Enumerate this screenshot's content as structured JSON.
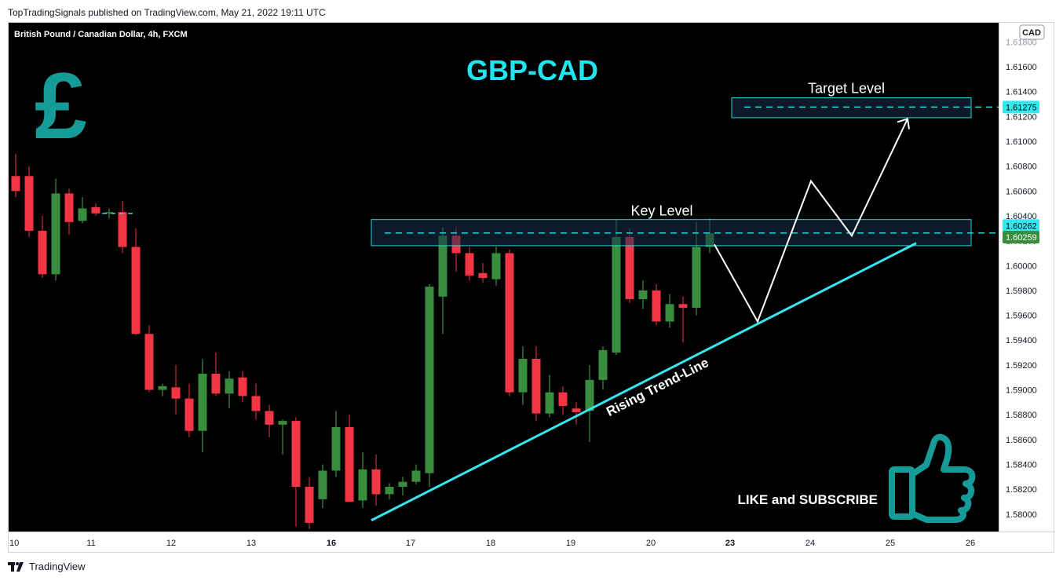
{
  "header": {
    "published_by": "TopTradingSignals published on TradingView.com, May 21, 2022 19:11 UTC",
    "symbol_title": "British Pound / Canadian Dollar, 4h, FXCM"
  },
  "footer": {
    "brand": "TradingView"
  },
  "chart_data": {
    "type": "candlestick",
    "title": "GBP-CAD",
    "currency": "CAD",
    "ylim": [
      1.5786,
      1.6196
    ],
    "y_ticks": [
      1.616,
      1.614,
      1.612,
      1.61,
      1.608,
      1.606,
      1.604,
      1.602,
      1.6,
      1.598,
      1.596,
      1.594,
      1.592,
      1.59,
      1.588,
      1.586,
      1.584,
      1.582,
      1.58
    ],
    "y_tick_labels": [
      "1.61600",
      "1.61400",
      "1.61200",
      "1.61000",
      "1.60800",
      "1.60600",
      "1.60400",
      "1.60200",
      "1.60000",
      "1.59800",
      "1.59600",
      "1.59400",
      "1.59200",
      "1.59000",
      "1.58800",
      "1.58600",
      "1.58400",
      "1.58200",
      "1.58000"
    ],
    "top_partial_tick": "1.61800",
    "x_labels": [
      "10",
      "11",
      "12",
      "13",
      "16",
      "17",
      "18",
      "19",
      "20",
      "23",
      "24",
      "25",
      "26"
    ],
    "x_labels_bold": [
      "16",
      "23"
    ],
    "candles": [
      {
        "o": 1.6072,
        "h": 1.609,
        "l": 1.6055,
        "c": 1.606
      },
      {
        "o": 1.6072,
        "h": 1.608,
        "l": 1.6023,
        "c": 1.6028
      },
      {
        "o": 1.6028,
        "h": 1.604,
        "l": 1.599,
        "c": 1.5993
      },
      {
        "o": 1.5993,
        "h": 1.607,
        "l": 1.5988,
        "c": 1.6058
      },
      {
        "o": 1.6058,
        "h": 1.6062,
        "l": 1.6025,
        "c": 1.6035
      },
      {
        "o": 1.6036,
        "h": 1.6055,
        "l": 1.6034,
        "c": 1.6046
      },
      {
        "o": 1.6047,
        "h": 1.605,
        "l": 1.604,
        "c": 1.6042
      },
      {
        "o": 1.6042,
        "h": 1.6046,
        "l": 1.6038,
        "c": 1.6043
      },
      {
        "o": 1.6043,
        "h": 1.6052,
        "l": 1.601,
        "c": 1.6015
      },
      {
        "o": 1.6015,
        "h": 1.603,
        "l": 1.5944,
        "c": 1.5945
      },
      {
        "o": 1.5945,
        "h": 1.5952,
        "l": 1.5898,
        "c": 1.59
      },
      {
        "o": 1.59,
        "h": 1.5905,
        "l": 1.5895,
        "c": 1.5903
      },
      {
        "o": 1.5902,
        "h": 1.592,
        "l": 1.588,
        "c": 1.5893
      },
      {
        "o": 1.5893,
        "h": 1.5905,
        "l": 1.5862,
        "c": 1.5867
      },
      {
        "o": 1.5867,
        "h": 1.5925,
        "l": 1.585,
        "c": 1.5913
      },
      {
        "o": 1.5913,
        "h": 1.593,
        "l": 1.5895,
        "c": 1.5897
      },
      {
        "o": 1.5897,
        "h": 1.5915,
        "l": 1.5885,
        "c": 1.5909
      },
      {
        "o": 1.591,
        "h": 1.5915,
        "l": 1.589,
        "c": 1.5895
      },
      {
        "o": 1.5895,
        "h": 1.5905,
        "l": 1.5876,
        "c": 1.5883
      },
      {
        "o": 1.5883,
        "h": 1.5888,
        "l": 1.5862,
        "c": 1.5872
      },
      {
        "o": 1.5872,
        "h": 1.5876,
        "l": 1.5848,
        "c": 1.5875
      },
      {
        "o": 1.5875,
        "h": 1.5878,
        "l": 1.579,
        "c": 1.5822
      },
      {
        "o": 1.5822,
        "h": 1.583,
        "l": 1.5788,
        "c": 1.5793
      },
      {
        "o": 1.5812,
        "h": 1.584,
        "l": 1.5805,
        "c": 1.5835
      },
      {
        "o": 1.5835,
        "h": 1.5883,
        "l": 1.583,
        "c": 1.587
      },
      {
        "o": 1.587,
        "h": 1.588,
        "l": 1.581,
        "c": 1.581
      },
      {
        "o": 1.5811,
        "h": 1.585,
        "l": 1.5805,
        "c": 1.5836
      },
      {
        "o": 1.5836,
        "h": 1.5848,
        "l": 1.5807,
        "c": 1.5816
      },
      {
        "o": 1.5816,
        "h": 1.5825,
        "l": 1.5812,
        "c": 1.5822
      },
      {
        "o": 1.5822,
        "h": 1.583,
        "l": 1.5815,
        "c": 1.5826
      },
      {
        "o": 1.5826,
        "h": 1.584,
        "l": 1.5824,
        "c": 1.5835
      },
      {
        "o": 1.5833,
        "h": 1.5985,
        "l": 1.5822,
        "c": 1.5983
      },
      {
        "o": 1.5975,
        "h": 1.6031,
        "l": 1.5945,
        "c": 1.6024
      },
      {
        "o": 1.6024,
        "h": 1.6031,
        "l": 1.5995,
        "c": 1.601
      },
      {
        "o": 1.601,
        "h": 1.6015,
        "l": 1.5988,
        "c": 1.5992
      },
      {
        "o": 1.5994,
        "h": 1.6002,
        "l": 1.5986,
        "c": 1.599
      },
      {
        "o": 1.5989,
        "h": 1.6015,
        "l": 1.5984,
        "c": 1.601
      },
      {
        "o": 1.601,
        "h": 1.6013,
        "l": 1.5895,
        "c": 1.5898
      },
      {
        "o": 1.5898,
        "h": 1.5935,
        "l": 1.5888,
        "c": 1.5925
      },
      {
        "o": 1.5925,
        "h": 1.5935,
        "l": 1.5875,
        "c": 1.5881
      },
      {
        "o": 1.5881,
        "h": 1.5912,
        "l": 1.5878,
        "c": 1.5898
      },
      {
        "o": 1.5898,
        "h": 1.5903,
        "l": 1.588,
        "c": 1.5887
      },
      {
        "o": 1.5885,
        "h": 1.589,
        "l": 1.5872,
        "c": 1.5882
      },
      {
        "o": 1.5883,
        "h": 1.592,
        "l": 1.5858,
        "c": 1.5908
      },
      {
        "o": 1.5908,
        "h": 1.5935,
        "l": 1.59,
        "c": 1.5932
      },
      {
        "o": 1.593,
        "h": 1.6037,
        "l": 1.5928,
        "c": 1.6023
      },
      {
        "o": 1.6023,
        "h": 1.603,
        "l": 1.597,
        "c": 1.5973
      },
      {
        "o": 1.5973,
        "h": 1.5988,
        "l": 1.5965,
        "c": 1.598
      },
      {
        "o": 1.598,
        "h": 1.5985,
        "l": 1.5952,
        "c": 1.5955
      },
      {
        "o": 1.5955,
        "h": 1.5977,
        "l": 1.595,
        "c": 1.5969
      },
      {
        "o": 1.5969,
        "h": 1.5975,
        "l": 1.5938,
        "c": 1.5966
      },
      {
        "o": 1.5966,
        "h": 1.6035,
        "l": 1.596,
        "c": 1.6015
      },
      {
        "o": 1.6015,
        "h": 1.6038,
        "l": 1.601,
        "c": 1.6026
      }
    ],
    "annotations": {
      "key_level_label": "Key Level",
      "key_level_price": 1.60262,
      "key_level_zone": [
        1.6016,
        1.6037
      ],
      "target_level_label": "Target Level",
      "target_level_price": 1.61275,
      "target_level_zone": [
        1.6119,
        1.6135
      ],
      "trendline_label": "Rising Trend-Line",
      "trendline": {
        "from": [
          16.5,
          1.5795
        ],
        "to": [
          25.3,
          1.6018
        ]
      },
      "projection_path": [
        [
          22.65,
          1.6017
        ],
        [
          23.35,
          1.5955
        ],
        [
          24.0,
          1.6068
        ],
        [
          24.5,
          1.6024
        ],
        [
          25.2,
          1.6118
        ]
      ],
      "current_price": 1.60259,
      "current_price_label": "1.60259",
      "key_price_label": "1.60262",
      "target_price_label": "1.61275",
      "cta_text": "LIKE and SUBSCRIBE"
    },
    "colors": {
      "up": "#26a69a",
      "up_body": "#388e3c",
      "down": "#f23645",
      "trendline": "#34e7f0",
      "zone_border": "#2bd6de",
      "logo_teal": "#169c98",
      "title_cyan": "#21e4ef"
    },
    "icons": [
      "pound-sign-icon",
      "thumbs-up-icon",
      "tradingview-logo-icon"
    ]
  }
}
